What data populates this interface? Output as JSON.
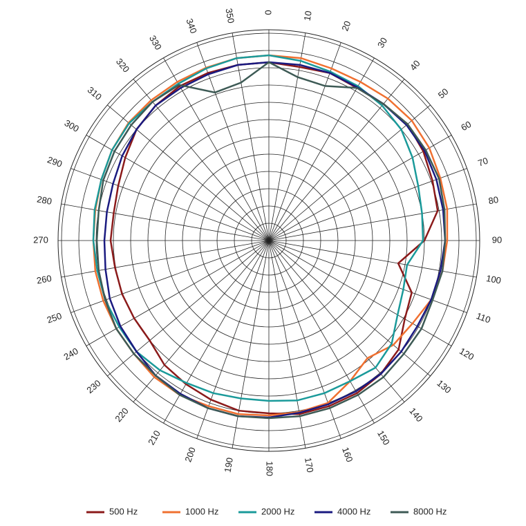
{
  "chart_data": {
    "type": "polar-line",
    "theta": [
      0,
      10,
      20,
      30,
      40,
      50,
      60,
      70,
      80,
      90,
      100,
      110,
      120,
      130,
      140,
      150,
      160,
      170,
      180,
      190,
      200,
      210,
      220,
      230,
      240,
      250,
      260,
      270,
      280,
      290,
      300,
      310,
      320,
      330,
      340,
      350
    ],
    "rlim": [
      0,
      61
    ],
    "rticks": [
      5,
      10,
      15,
      20,
      25,
      30,
      35,
      40,
      45,
      50,
      55,
      60
    ],
    "grid": true,
    "legend": "bottom",
    "series": [
      {
        "name": "500 Hz",
        "color": "#8b1a1a",
        "values": [
          51.6,
          51,
          51.6,
          51,
          51.6,
          52.4,
          51.6,
          50.4,
          49.6,
          45,
          38,
          44,
          45.4,
          49,
          50.4,
          51,
          51,
          51,
          50,
          50,
          49,
          48,
          47,
          45,
          45,
          45.2,
          45.2,
          45.8,
          45.6,
          46.4,
          48,
          50,
          51,
          51.6,
          51.6,
          51.6
        ]
      },
      {
        "name": "1000 Hz",
        "color": "#f07030",
        "values": [
          53.6,
          53.6,
          53,
          53,
          53.6,
          54,
          53.6,
          52.8,
          52.4,
          51.6,
          51,
          50,
          48,
          47,
          44.4,
          47,
          50,
          50.4,
          50.6,
          51,
          51,
          51.6,
          51.6,
          51,
          51,
          51,
          51,
          50.8,
          51,
          51.6,
          52.4,
          53,
          53,
          53,
          53.2,
          53.6
        ]
      },
      {
        "name": "2000 Hz",
        "color": "#1a9a9a",
        "values": [
          53.6,
          52.8,
          52,
          51.6,
          51,
          50,
          48,
          46,
          45,
          44.6,
          40.6,
          41.4,
          43,
          46.4,
          48,
          47,
          47,
          47,
          46.4,
          46.4,
          47,
          47.6,
          49,
          50,
          50,
          50.4,
          50.4,
          50.8,
          51.2,
          51.6,
          52.4,
          52.8,
          52.4,
          52.4,
          53,
          53.6
        ]
      },
      {
        "name": "4000 Hz",
        "color": "#1a1a80",
        "values": [
          51.6,
          51.6,
          51.6,
          51.2,
          51.6,
          52,
          52,
          51.6,
          51.2,
          51,
          50.4,
          50,
          49.6,
          50,
          50.4,
          50.4,
          50.4,
          50.6,
          51.2,
          51.6,
          51.6,
          51.2,
          51,
          50,
          49.6,
          49,
          48,
          47.6,
          47.6,
          48,
          49,
          50,
          51,
          51,
          51.2,
          51.6
        ]
      },
      {
        "name": "8000 Hz",
        "color": "#3d5a55",
        "values": [
          51.6,
          48,
          47.6,
          51,
          51.6,
          52.4,
          52.4,
          52.4,
          51.6,
          51,
          51,
          50.4,
          51,
          51,
          51.6,
          51.6,
          51.6,
          51.6,
          51.4,
          51.6,
          51.6,
          51.6,
          51,
          51,
          51,
          50.4,
          50,
          49.8,
          50,
          51,
          51.6,
          52,
          52.4,
          52,
          45.6,
          46.4
        ]
      }
    ]
  }
}
